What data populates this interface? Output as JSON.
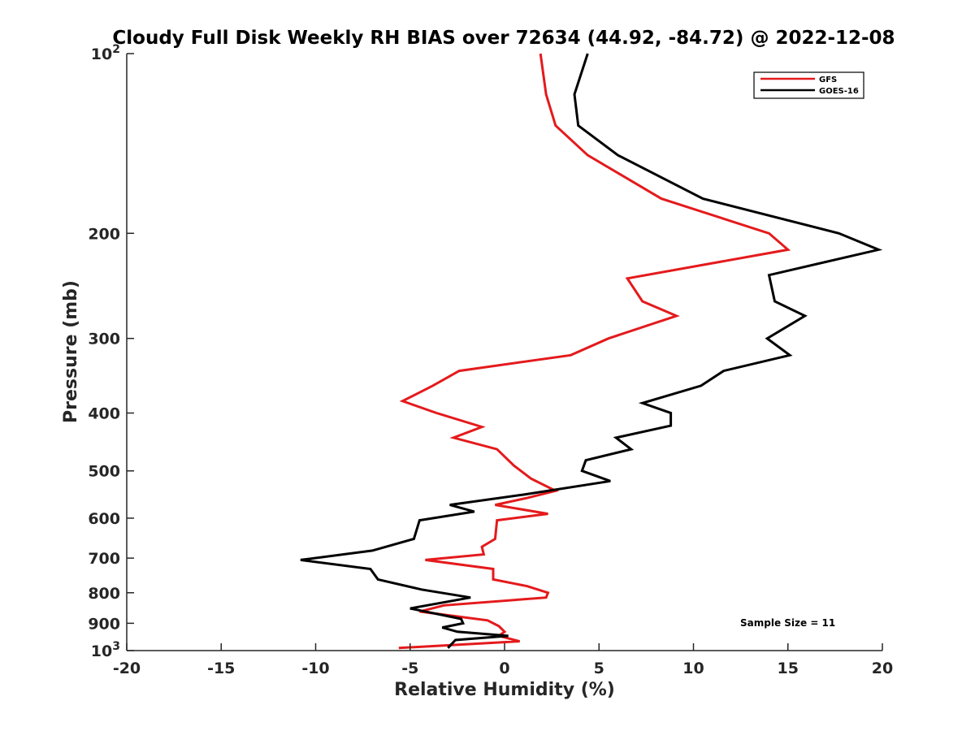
{
  "chart_data": {
    "type": "line",
    "title": "Cloudy Full Disk Weekly RH BIAS over 72634 (44.92, -84.72) @ 2022-12-08",
    "xlabel": "Relative Humidity (%)",
    "ylabel": "Pressure (mb)",
    "xlim": [
      -20,
      20
    ],
    "ylim": [
      100,
      1000
    ],
    "y_scale": "log",
    "y_reversed": true,
    "grid": false,
    "legend_position": "top-right",
    "x_ticks": [
      -20,
      -15,
      -10,
      -5,
      0,
      5,
      10,
      15,
      20
    ],
    "x_tick_labels": [
      "-20",
      "-15",
      "-10",
      "-5",
      "0",
      "5",
      "10",
      "15",
      "20"
    ],
    "y_ticks": [
      {
        "value": 100,
        "base": "10",
        "sup": "2"
      },
      {
        "value": 200,
        "base": "200",
        "sup": ""
      },
      {
        "value": 300,
        "base": "300",
        "sup": ""
      },
      {
        "value": 400,
        "base": "400",
        "sup": ""
      },
      {
        "value": 500,
        "base": "500",
        "sup": ""
      },
      {
        "value": 600,
        "base": "600",
        "sup": ""
      },
      {
        "value": 700,
        "base": "700",
        "sup": ""
      },
      {
        "value": 800,
        "base": "800",
        "sup": ""
      },
      {
        "value": 900,
        "base": "900",
        "sup": ""
      },
      {
        "value": 1000,
        "base": "10",
        "sup": "3"
      }
    ],
    "annotation": "Sample Size = 11",
    "series": [
      {
        "name": "GFS",
        "color": "#e41a1c",
        "points": [
          [
            1.9,
            100
          ],
          [
            2.2,
            117
          ],
          [
            2.7,
            132
          ],
          [
            4.4,
            148
          ],
          [
            8.3,
            175
          ],
          [
            14.0,
            200
          ],
          [
            15.0,
            213
          ],
          [
            6.5,
            238
          ],
          [
            7.3,
            260
          ],
          [
            9.1,
            275
          ],
          [
            5.5,
            300
          ],
          [
            3.5,
            320
          ],
          [
            -2.4,
            340
          ],
          [
            -3.8,
            360
          ],
          [
            -5.4,
            382
          ],
          [
            -3.6,
            400
          ],
          [
            -1.2,
            422
          ],
          [
            -2.7,
            440
          ],
          [
            -0.4,
            460
          ],
          [
            0.5,
            490
          ],
          [
            1.4,
            515
          ],
          [
            2.7,
            540
          ],
          [
            1.2,
            555
          ],
          [
            -0.5,
            570
          ],
          [
            2.3,
            590
          ],
          [
            -0.4,
            605
          ],
          [
            -0.5,
            650
          ],
          [
            -1.2,
            670
          ],
          [
            -1.1,
            690
          ],
          [
            -4.2,
            705
          ],
          [
            -0.6,
            730
          ],
          [
            -0.6,
            760
          ],
          [
            1.2,
            780
          ],
          [
            2.3,
            800
          ],
          [
            2.2,
            815
          ],
          [
            -3.2,
            840
          ],
          [
            -4.5,
            860
          ],
          [
            -0.9,
            890
          ],
          [
            -0.3,
            910
          ],
          [
            0.0,
            930
          ],
          [
            -0.3,
            945
          ],
          [
            0.8,
            965
          ],
          [
            -5.6,
            990
          ]
        ]
      },
      {
        "name": "GOES-16",
        "color": "#000000",
        "points": [
          [
            4.4,
            100
          ],
          [
            3.7,
            117
          ],
          [
            3.9,
            132
          ],
          [
            6.0,
            148
          ],
          [
            10.5,
            175
          ],
          [
            17.7,
            200
          ],
          [
            19.8,
            213
          ],
          [
            14.0,
            235
          ],
          [
            14.3,
            260
          ],
          [
            15.9,
            275
          ],
          [
            13.9,
            300
          ],
          [
            15.1,
            320
          ],
          [
            11.6,
            340
          ],
          [
            10.4,
            360
          ],
          [
            7.3,
            385
          ],
          [
            8.8,
            400
          ],
          [
            8.8,
            420
          ],
          [
            5.9,
            440
          ],
          [
            6.7,
            460
          ],
          [
            4.3,
            480
          ],
          [
            4.1,
            500
          ],
          [
            5.6,
            520
          ],
          [
            1.0,
            548
          ],
          [
            -2.9,
            570
          ],
          [
            -1.6,
            585
          ],
          [
            -4.5,
            605
          ],
          [
            -4.8,
            650
          ],
          [
            -7.0,
            680
          ],
          [
            -10.8,
            705
          ],
          [
            -7.1,
            730
          ],
          [
            -6.7,
            760
          ],
          [
            -4.4,
            790
          ],
          [
            -1.8,
            815
          ],
          [
            -5.0,
            850
          ],
          [
            -2.3,
            885
          ],
          [
            -2.2,
            900
          ],
          [
            -3.3,
            915
          ],
          [
            -2.5,
            930
          ],
          [
            0.2,
            945
          ],
          [
            -2.6,
            960
          ],
          [
            -3.0,
            990
          ]
        ]
      }
    ]
  }
}
